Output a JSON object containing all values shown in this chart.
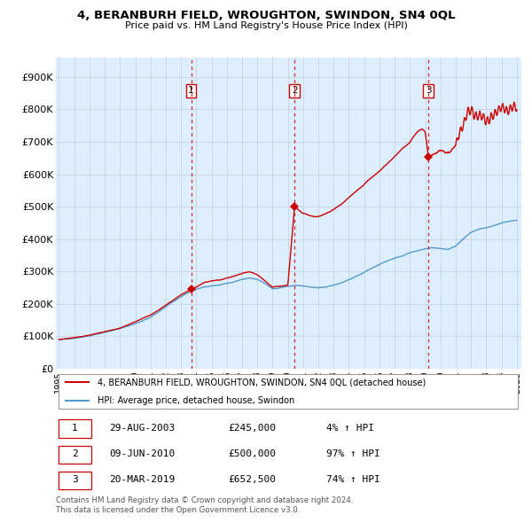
{
  "title": "4, BERANBURH FIELD, WROUGHTON, SWINDON, SN4 0QL",
  "subtitle": "Price paid vs. HM Land Registry's House Price Index (HPI)",
  "ylabel_ticks": [
    "£0",
    "£100K",
    "£200K",
    "£300K",
    "£400K",
    "£500K",
    "£600K",
    "£700K",
    "£800K",
    "£900K"
  ],
  "ytick_values": [
    0,
    100000,
    200000,
    300000,
    400000,
    500000,
    600000,
    700000,
    800000,
    900000
  ],
  "ylim": [
    0,
    960000
  ],
  "xlim_start": 1994.8,
  "xlim_end": 2025.3,
  "sale_dates": [
    2003.66,
    2010.44,
    2019.22
  ],
  "sale_prices": [
    245000,
    500000,
    652500
  ],
  "sale_labels": [
    "1",
    "2",
    "3"
  ],
  "sale_date_strings": [
    "29-AUG-2003",
    "09-JUN-2010",
    "20-MAR-2019"
  ],
  "sale_price_strings": [
    "£245,000",
    "£500,000",
    "£652,500"
  ],
  "sale_pct_strings": [
    "4% ↑ HPI",
    "97% ↑ HPI",
    "74% ↑ HPI"
  ],
  "line_color_red": "#cc0000",
  "line_color_blue": "#5599cc",
  "background_color": "#ddeeff",
  "grid_color": "#c8ccd8",
  "legend_line1": "4, BERANBURH FIELD, WROUGHTON, SWINDON, SN4 0QL (detached house)",
  "legend_line2": "HPI: Average price, detached house, Swindon",
  "footer": "Contains HM Land Registry data © Crown copyright and database right 2024.\nThis data is licensed under the Open Government Licence v3.0.",
  "hpi_anchors": [
    [
      1995.0,
      90000
    ],
    [
      1995.5,
      92000
    ],
    [
      1996.0,
      95000
    ],
    [
      1996.5,
      98000
    ],
    [
      1997.0,
      103000
    ],
    [
      1997.5,
      108000
    ],
    [
      1998.0,
      114000
    ],
    [
      1998.5,
      120000
    ],
    [
      1999.0,
      128000
    ],
    [
      1999.5,
      135000
    ],
    [
      2000.0,
      143000
    ],
    [
      2000.5,
      153000
    ],
    [
      2001.0,
      163000
    ],
    [
      2001.5,
      178000
    ],
    [
      2002.0,
      194000
    ],
    [
      2002.5,
      210000
    ],
    [
      2003.0,
      225000
    ],
    [
      2003.5,
      238000
    ],
    [
      2004.0,
      248000
    ],
    [
      2004.5,
      255000
    ],
    [
      2005.0,
      258000
    ],
    [
      2005.5,
      260000
    ],
    [
      2006.0,
      265000
    ],
    [
      2006.5,
      270000
    ],
    [
      2007.0,
      278000
    ],
    [
      2007.5,
      283000
    ],
    [
      2008.0,
      278000
    ],
    [
      2008.5,
      265000
    ],
    [
      2009.0,
      248000
    ],
    [
      2009.5,
      250000
    ],
    [
      2010.0,
      255000
    ],
    [
      2010.5,
      258000
    ],
    [
      2011.0,
      255000
    ],
    [
      2011.5,
      250000
    ],
    [
      2012.0,
      248000
    ],
    [
      2012.5,
      250000
    ],
    [
      2013.0,
      255000
    ],
    [
      2013.5,
      262000
    ],
    [
      2014.0,
      272000
    ],
    [
      2014.5,
      283000
    ],
    [
      2015.0,
      295000
    ],
    [
      2015.5,
      308000
    ],
    [
      2016.0,
      320000
    ],
    [
      2016.5,
      330000
    ],
    [
      2017.0,
      338000
    ],
    [
      2017.5,
      345000
    ],
    [
      2018.0,
      355000
    ],
    [
      2018.5,
      362000
    ],
    [
      2019.0,
      368000
    ],
    [
      2019.5,
      372000
    ],
    [
      2020.0,
      370000
    ],
    [
      2020.5,
      368000
    ],
    [
      2021.0,
      378000
    ],
    [
      2021.5,
      400000
    ],
    [
      2022.0,
      420000
    ],
    [
      2022.5,
      430000
    ],
    [
      2023.0,
      435000
    ],
    [
      2023.5,
      442000
    ],
    [
      2024.0,
      450000
    ],
    [
      2024.5,
      455000
    ],
    [
      2025.0,
      458000
    ]
  ],
  "price_anchors_before_sale1": [
    [
      1995.0,
      90000
    ],
    [
      1996.0,
      96000
    ],
    [
      1997.0,
      104000
    ],
    [
      1998.0,
      115000
    ],
    [
      1999.0,
      125000
    ],
    [
      2000.0,
      144000
    ],
    [
      2001.0,
      165000
    ],
    [
      2002.0,
      196000
    ],
    [
      2003.0,
      228000
    ],
    [
      2003.66,
      245000
    ]
  ],
  "price_anchors_sale1_to_sale2": [
    [
      2003.66,
      245000
    ],
    [
      2004.0,
      252000
    ],
    [
      2004.5,
      265000
    ],
    [
      2005.0,
      270000
    ],
    [
      2005.5,
      272000
    ],
    [
      2006.0,
      278000
    ],
    [
      2006.5,
      284000
    ],
    [
      2007.0,
      293000
    ],
    [
      2007.5,
      298000
    ],
    [
      2008.0,
      290000
    ],
    [
      2008.5,
      270000
    ],
    [
      2009.0,
      252000
    ],
    [
      2009.5,
      255000
    ],
    [
      2010.0,
      258000
    ],
    [
      2010.44,
      500000
    ]
  ],
  "price_anchors_sale2_to_sale3": [
    [
      2010.44,
      500000
    ],
    [
      2010.8,
      488000
    ],
    [
      2011.0,
      482000
    ],
    [
      2011.5,
      475000
    ],
    [
      2012.0,
      472000
    ],
    [
      2012.5,
      478000
    ],
    [
      2013.0,
      490000
    ],
    [
      2013.5,
      505000
    ],
    [
      2014.0,
      525000
    ],
    [
      2014.5,
      548000
    ],
    [
      2015.0,
      568000
    ],
    [
      2015.5,
      590000
    ],
    [
      2016.0,
      610000
    ],
    [
      2016.5,
      632000
    ],
    [
      2017.0,
      655000
    ],
    [
      2017.5,
      680000
    ],
    [
      2018.0,
      700000
    ],
    [
      2018.3,
      720000
    ],
    [
      2018.6,
      735000
    ],
    [
      2018.8,
      740000
    ],
    [
      2019.0,
      730000
    ],
    [
      2019.22,
      652500
    ]
  ],
  "price_anchors_after_sale3": [
    [
      2019.22,
      652500
    ],
    [
      2019.5,
      660000
    ],
    [
      2020.0,
      670000
    ],
    [
      2020.3,
      660000
    ],
    [
      2020.6,
      655000
    ],
    [
      2021.0,
      680000
    ],
    [
      2021.3,
      720000
    ],
    [
      2021.6,
      760000
    ],
    [
      2021.8,
      790000
    ],
    [
      2022.0,
      800000
    ],
    [
      2022.2,
      780000
    ],
    [
      2022.4,
      775000
    ],
    [
      2022.6,
      780000
    ],
    [
      2022.8,
      770000
    ],
    [
      2023.0,
      760000
    ],
    [
      2023.2,
      770000
    ],
    [
      2023.4,
      780000
    ],
    [
      2023.6,
      790000
    ],
    [
      2023.8,
      800000
    ],
    [
      2024.0,
      810000
    ],
    [
      2024.2,
      800000
    ],
    [
      2024.4,
      790000
    ],
    [
      2024.6,
      800000
    ],
    [
      2024.8,
      810000
    ],
    [
      2025.0,
      805000
    ]
  ]
}
